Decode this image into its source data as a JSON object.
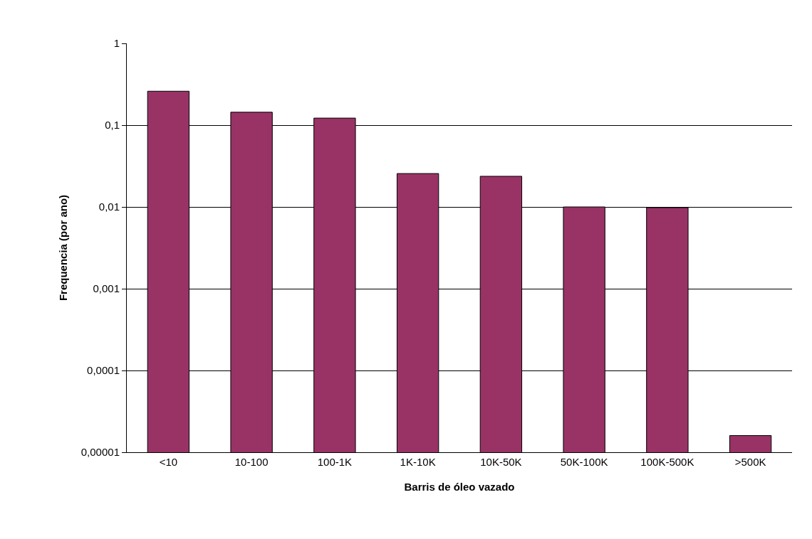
{
  "chart_data": {
    "type": "bar",
    "xlabel": "Barris de óleo vazado",
    "ylabel": "Frequencia (por ano)",
    "categories": [
      "<10",
      "10-100",
      "100-1K",
      "1K-10K",
      "10K-50K",
      "50K-100K",
      "100K-500K",
      ">500K"
    ],
    "values": [
      0.26,
      0.144,
      0.122,
      0.0256,
      0.0237,
      0.01,
      0.0098,
      1.6e-05
    ],
    "color": "#993366",
    "log": true,
    "ylim": [
      1e-05,
      1
    ],
    "yticks": [
      {
        "value": 1e-05,
        "label": "0,00001"
      },
      {
        "value": 0.0001,
        "label": "0,0001"
      },
      {
        "value": 0.001,
        "label": "0,001"
      },
      {
        "value": 0.01,
        "label": "0,01"
      },
      {
        "value": 0.1,
        "label": "0,1"
      },
      1
    ],
    "grid": "y",
    "legend": false
  }
}
